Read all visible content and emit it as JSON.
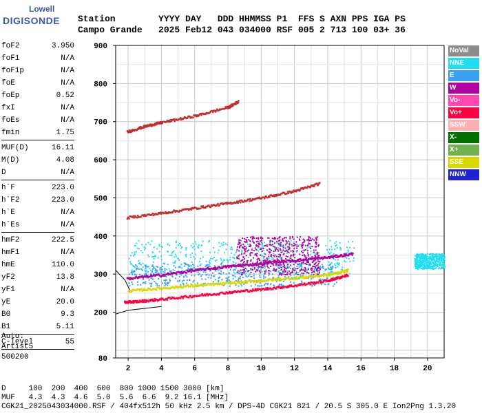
{
  "logo": {
    "line1": "Lowell",
    "line2": "DIGISONDE"
  },
  "header": {
    "row1": "Station        YYYY DAY   DDD HHMMSS P1  FFS S AXN PPS IGA PS",
    "row2": "Campo Grande   2025 Feb12 043 034000 RSF 005 2 713 100 03+ 36"
  },
  "params": {
    "group1": [
      {
        "name": "foF2",
        "value": "3.950"
      },
      {
        "name": "foF1",
        "value": "N/A"
      },
      {
        "name": "foF1p",
        "value": "N/A"
      },
      {
        "name": "foE",
        "value": "N/A"
      },
      {
        "name": "foEp",
        "value": "0.52"
      },
      {
        "name": "fxI",
        "value": "N/A"
      },
      {
        "name": "foEs",
        "value": "N/A"
      },
      {
        "name": "fmin",
        "value": "1.75"
      }
    ],
    "group2": [
      {
        "name": "MUF(D)",
        "value": "16.11"
      },
      {
        "name": "M(D)",
        "value": "4.08"
      },
      {
        "name": "D",
        "value": "N/A"
      }
    ],
    "group3": [
      {
        "name": "h`F",
        "value": "223.0"
      },
      {
        "name": "h`F2",
        "value": "223.0"
      },
      {
        "name": "h`E",
        "value": "N/A"
      },
      {
        "name": "h`Es",
        "value": "N/A"
      }
    ],
    "group4": [
      {
        "name": "hmF2",
        "value": "222.5"
      },
      {
        "name": "hmF1",
        "value": "N/A"
      },
      {
        "name": "hmE",
        "value": "110.0"
      },
      {
        "name": "yF2",
        "value": "13.8"
      },
      {
        "name": "yF1",
        "value": "N/A"
      },
      {
        "name": "yE",
        "value": "20.0"
      },
      {
        "name": "B0",
        "value": "9.3"
      },
      {
        "name": "B1",
        "value": "5.11"
      }
    ],
    "group5": [
      {
        "name": "C-level",
        "value": "55"
      }
    ]
  },
  "auto": {
    "line1": "Auto:",
    "line2": "Artist5",
    "line3": "500200"
  },
  "legend": [
    {
      "label": "NoVal",
      "color": "#8c8c8c"
    },
    {
      "label": "NNE",
      "color": "#22ddf0"
    },
    {
      "label": "E",
      "color": "#3aa0f0"
    },
    {
      "label": "W",
      "color": "#b000a0"
    },
    {
      "label": "Vo-",
      "color": "#ff48b0"
    },
    {
      "label": "Vo+",
      "color": "#ff0040"
    },
    {
      "label": "SSW",
      "color": "#ffb0b0"
    },
    {
      "label": "X-",
      "color": "#007000"
    },
    {
      "label": "X+",
      "color": "#70b050"
    },
    {
      "label": "SSE",
      "color": "#d8d800"
    },
    {
      "label": "NNW",
      "color": "#2020d0"
    }
  ],
  "footer": {
    "line1": "D     100  200  400  600  800 1000 1500 3000 [km]",
    "line2": "MUF   4.3  4.3  4.6  5.0  5.6  6.6  9.2 16.1 [MHz]",
    "line3": "CGK21_2025043034000.RSF / 404fx512h 50 kHz 2.5 km / DPS-4D CGK21 821 / 20.5 S 305.0 E Ion2Png 1.3.20"
  },
  "chart_data": {
    "type": "scatter",
    "xlabel": "",
    "ylabel": "",
    "xlim": [
      1.25,
      21.0
    ],
    "ylim": [
      80,
      900
    ],
    "x_ticks": [
      2,
      4,
      6,
      8,
      10,
      12,
      14,
      16,
      18,
      20
    ],
    "y_ticks": [
      200,
      300,
      400,
      500,
      600,
      700,
      800,
      900
    ],
    "y_tick_bottom": 80,
    "grid": true,
    "traces": [
      {
        "name": "Vo+",
        "color": "#ff0040",
        "x": [
          1.75,
          2.5,
          4,
          6,
          8,
          10,
          12,
          14,
          15.2
        ],
        "y": [
          228,
          230,
          236,
          245,
          254,
          262,
          272,
          285,
          300
        ]
      },
      {
        "name": "W",
        "color": "#b000a0",
        "x": [
          1.9,
          4,
          6,
          8,
          10,
          12,
          14,
          15.5
        ],
        "y": [
          290,
          300,
          312,
          322,
          330,
          338,
          346,
          355
        ]
      },
      {
        "name": "SSE",
        "color": "#d8d800",
        "x": [
          2,
          4,
          6,
          8,
          10,
          12,
          14,
          15.2
        ],
        "y": [
          258,
          265,
          272,
          278,
          285,
          292,
          300,
          312
        ]
      },
      {
        "name": "echo2",
        "color": "#c03030",
        "x": [
          1.9,
          4,
          6,
          8,
          10,
          12,
          13.5
        ],
        "y": [
          450,
          462,
          475,
          488,
          502,
          520,
          540
        ]
      },
      {
        "name": "echo3",
        "color": "#c03030",
        "x": [
          1.9,
          3,
          4,
          6,
          8,
          8.6
        ],
        "y": [
          675,
          690,
          700,
          717,
          740,
          755
        ]
      }
    ],
    "cloud_regions": [
      {
        "color": "#22ddf0",
        "x": [
          2.0,
          15.6
        ],
        "y": [
          300,
          390
        ]
      },
      {
        "color": "#3aa0f0",
        "x": [
          2.0,
          14.5
        ],
        "y": [
          270,
          330
        ]
      },
      {
        "color": "#b000a0",
        "x": [
          8.5,
          13.5
        ],
        "y": [
          300,
          400
        ]
      },
      {
        "color": "#22ddf0",
        "x": [
          19.2,
          21.0
        ],
        "y": [
          315,
          355
        ]
      }
    ],
    "model_curve": {
      "x": [
        1.25,
        2,
        3,
        4
      ],
      "y": [
        195,
        205,
        210,
        215
      ]
    },
    "model_curve2": {
      "x": [
        1.25,
        1.8,
        2.1
      ],
      "y": [
        310,
        285,
        258
      ]
    }
  }
}
